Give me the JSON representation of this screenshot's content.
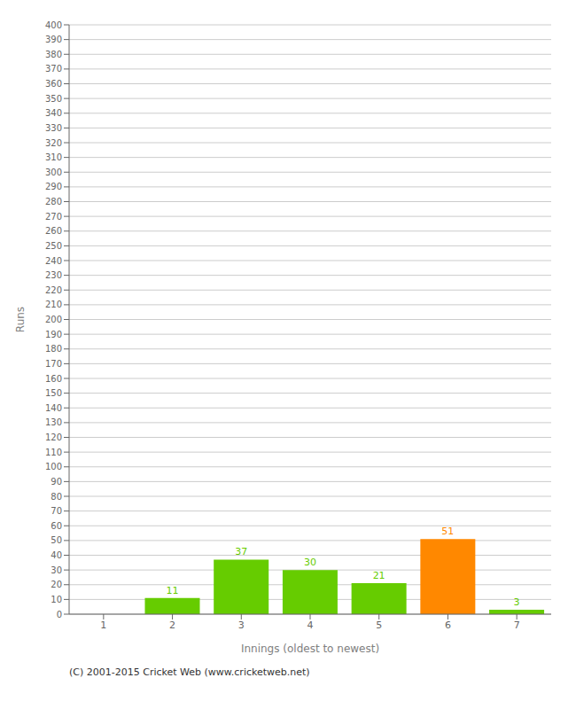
{
  "chart_data": {
    "type": "bar",
    "categories": [
      "1",
      "2",
      "3",
      "4",
      "5",
      "6",
      "7"
    ],
    "values": [
      0,
      11,
      37,
      30,
      21,
      51,
      3
    ],
    "colors": [
      "#66cc00",
      "#66cc00",
      "#66cc00",
      "#66cc00",
      "#66cc00",
      "#ff8800",
      "#66cc00"
    ],
    "xlabel": "Innings (oldest to newest)",
    "ylabel": "Runs",
    "ylim": [
      0,
      400
    ],
    "yticks": [
      0,
      10,
      20,
      30,
      40,
      50,
      60,
      70,
      80,
      90,
      100,
      110,
      120,
      130,
      140,
      150,
      160,
      170,
      180,
      190,
      200,
      210,
      220,
      230,
      240,
      250,
      260,
      270,
      280,
      290,
      300,
      310,
      320,
      330,
      340,
      350,
      360,
      370,
      380,
      390,
      400
    ],
    "grid": true,
    "data_labels": true,
    "annotations": [
      "(C) 2001-2015 Cricket Web (www.cricketweb.net)"
    ]
  }
}
